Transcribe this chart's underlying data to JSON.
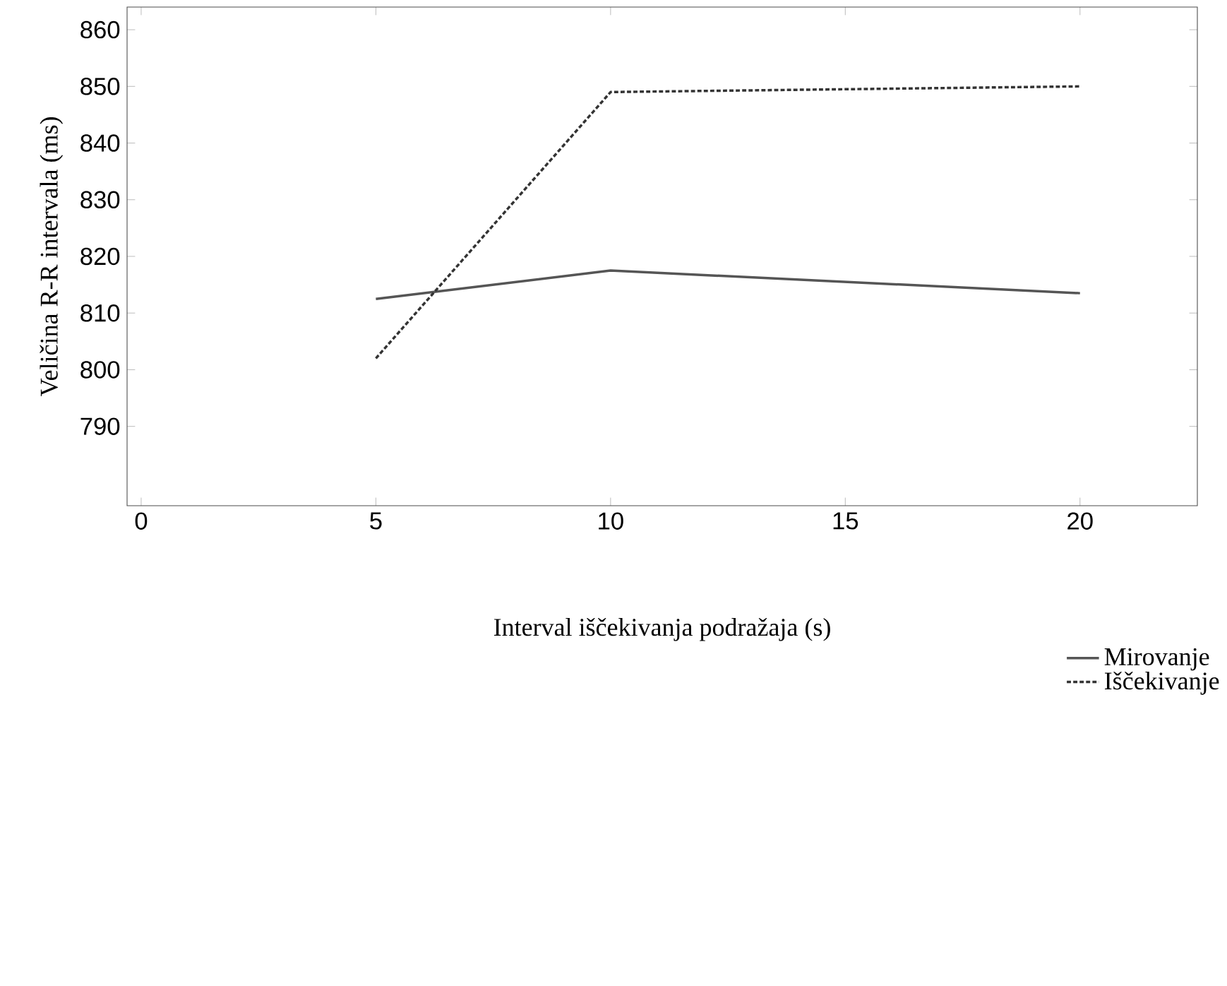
{
  "chart_data": {
    "type": "line",
    "xlabel": "Interval iščekivanja podražaja (s)",
    "ylabel": "Veličina R-R intervala (ms)",
    "x": [
      5,
      10,
      20
    ],
    "series": [
      {
        "name": "Mirovanje",
        "color": "#555555",
        "line_style": "solid",
        "values": [
          812.5,
          817.5,
          813.5
        ]
      },
      {
        "name": "Iščekivanje",
        "color": "#333333",
        "line_style": "dashed",
        "values": [
          802,
          849,
          850
        ]
      }
    ],
    "xlim": [
      -0.3,
      22.5
    ],
    "ylim": [
      776,
      864
    ],
    "xticks": [
      0,
      5,
      10,
      15,
      20
    ],
    "yticks": [
      790,
      800,
      810,
      820,
      830,
      840,
      850,
      860
    ],
    "grid": false,
    "legend": "bottom right",
    "marker": "none"
  }
}
